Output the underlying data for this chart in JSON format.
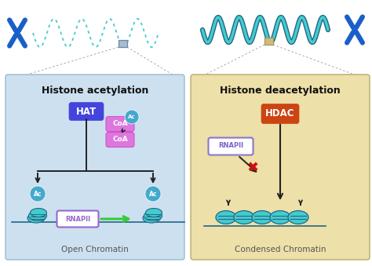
{
  "fig_width": 4.74,
  "fig_height": 3.39,
  "dpi": 100,
  "bg_color": "#ffffff",
  "left_panel_bg": "#cce0f0",
  "right_panel_bg": "#ede0a8",
  "left_title": "Histone acetylation",
  "right_title": "Histone deacetylation",
  "hat_label": "HAT",
  "hat_color": "#4444dd",
  "hdac_label": "HDAC",
  "hdac_color": "#cc4411",
  "coa_color": "#dd77dd",
  "coa_edge": "#cc55cc",
  "ac_color": "#44aacc",
  "rnapii_left_color": "#9966cc",
  "rnapii_right_color": "#7766cc",
  "rnapii_right_edge": "#8877cc",
  "arrow_color": "#222222",
  "green_arrow_color": "#33cc33",
  "chromatin_color": "#44cccc",
  "chromatin_dark": "#226688",
  "left_bottom_label": "Open Chromatin",
  "right_bottom_label": "Condensed Chromatin",
  "chromosome_blue": "#1a5fc8",
  "dna_teal": "#44cccc",
  "small_box_left_color": "#aabbcc",
  "small_box_right_color": "#ccbb88",
  "zoom_line_color": "#999999",
  "panel_edge_left": "#99bbd0",
  "panel_edge_right": "#bbaa66"
}
